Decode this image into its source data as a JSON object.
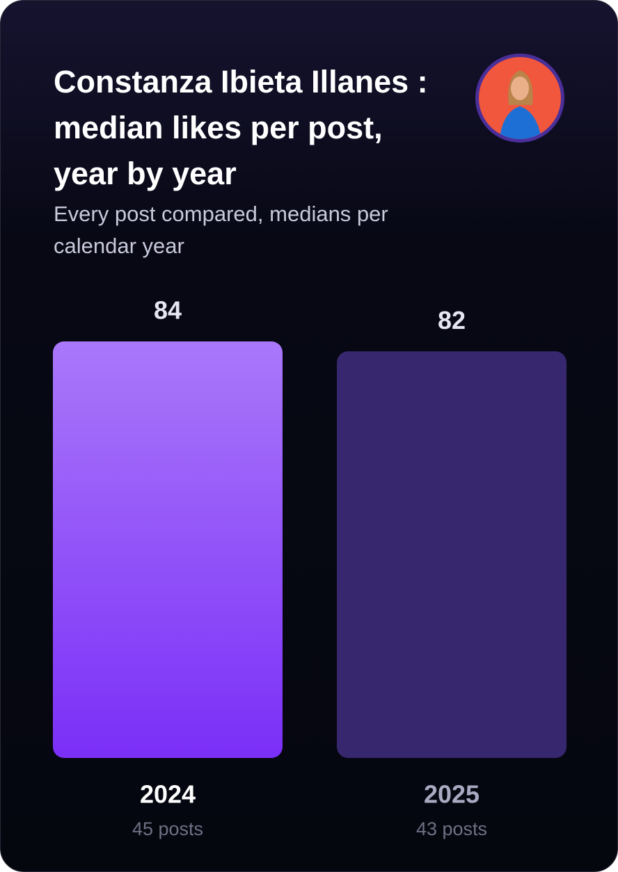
{
  "chart_data": {
    "type": "bar",
    "title": "Constanza Ibieta Illanes : median likes per post, year by year",
    "subtitle": "Every post compared, medians per calendar year",
    "categories": [
      "2024",
      "2025"
    ],
    "values": [
      84,
      82
    ],
    "sublabels": [
      "45 posts",
      "43 posts"
    ],
    "colors": [
      "#7b2ff7",
      "#37276f"
    ],
    "category_label_colors": [
      "#ffffff",
      "#a9a9c2"
    ]
  }
}
